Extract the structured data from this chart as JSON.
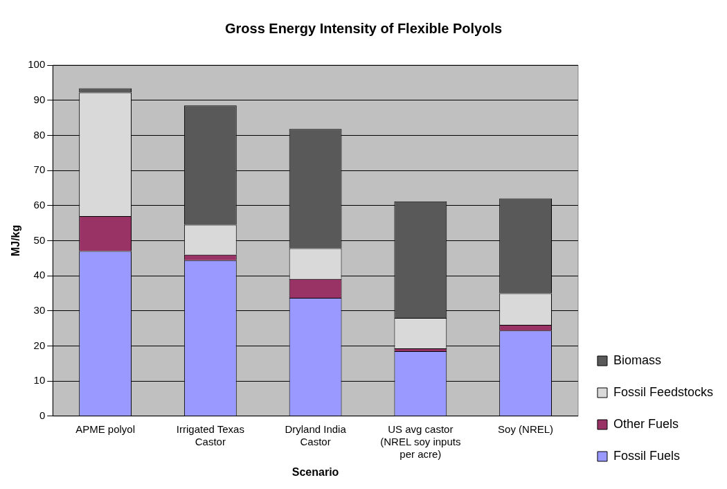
{
  "chart_data": {
    "type": "bar",
    "title": "Gross Energy Intensity of Flexible Polyols",
    "xlabel": "Scenario",
    "ylabel": "MJ/kg",
    "categories": [
      "APME polyol",
      "Irrigated Texas Castor",
      "Dryland India Castor",
      "US avg castor (NREL soy inputs per acre)",
      "Soy (NREL)"
    ],
    "stacked": true,
    "ylim": [
      0,
      100
    ],
    "yticks": [
      0,
      10,
      20,
      30,
      40,
      50,
      60,
      70,
      80,
      90,
      100
    ],
    "grid": "y",
    "legend": "right",
    "series": [
      {
        "name": "Fossil Fuels",
        "color": "#9999ff",
        "values": [
          47,
          44.4,
          33.7,
          18.5,
          24.4
        ]
      },
      {
        "name": "Other Fuels",
        "color": "#993366",
        "values": [
          10,
          1.6,
          5.4,
          0.8,
          1.6
        ]
      },
      {
        "name": "Fossil Feedstocks",
        "color": "#d9d9d9",
        "values": [
          35.2,
          8.5,
          8.7,
          8.7,
          9
        ]
      },
      {
        "name": "Biomass",
        "color": "#595959",
        "values": [
          1.2,
          34,
          34,
          33.2,
          27
        ]
      }
    ]
  }
}
